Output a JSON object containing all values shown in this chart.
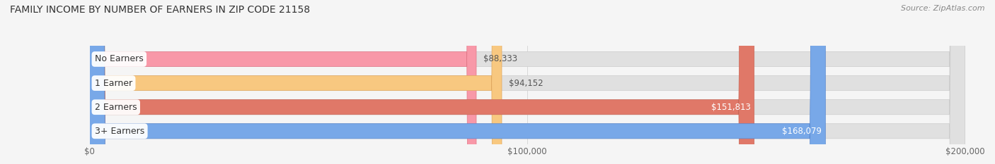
{
  "title": "FAMILY INCOME BY NUMBER OF EARNERS IN ZIP CODE 21158",
  "source": "Source: ZipAtlas.com",
  "categories": [
    "No Earners",
    "1 Earner",
    "2 Earners",
    "3+ Earners"
  ],
  "values": [
    88333,
    94152,
    151813,
    168079
  ],
  "value_labels": [
    "$88,333",
    "$94,152",
    "$151,813",
    "$168,079"
  ],
  "bar_colors": [
    "#f898a8",
    "#f8c880",
    "#e07868",
    "#78a8e8"
  ],
  "bar_edge_colors": [
    "#e07888",
    "#e0a860",
    "#c86858",
    "#5888d0"
  ],
  "xlim": [
    0,
    200000
  ],
  "xtick_values": [
    0,
    100000,
    200000
  ],
  "xtick_labels": [
    "$0",
    "$100,000",
    "$200,000"
  ],
  "background_color": "#f5f5f5",
  "bar_background_color": "#e0e0e0",
  "title_fontsize": 10,
  "source_fontsize": 8,
  "label_fontsize": 9,
  "value_fontsize": 8.5,
  "tick_fontsize": 8.5
}
